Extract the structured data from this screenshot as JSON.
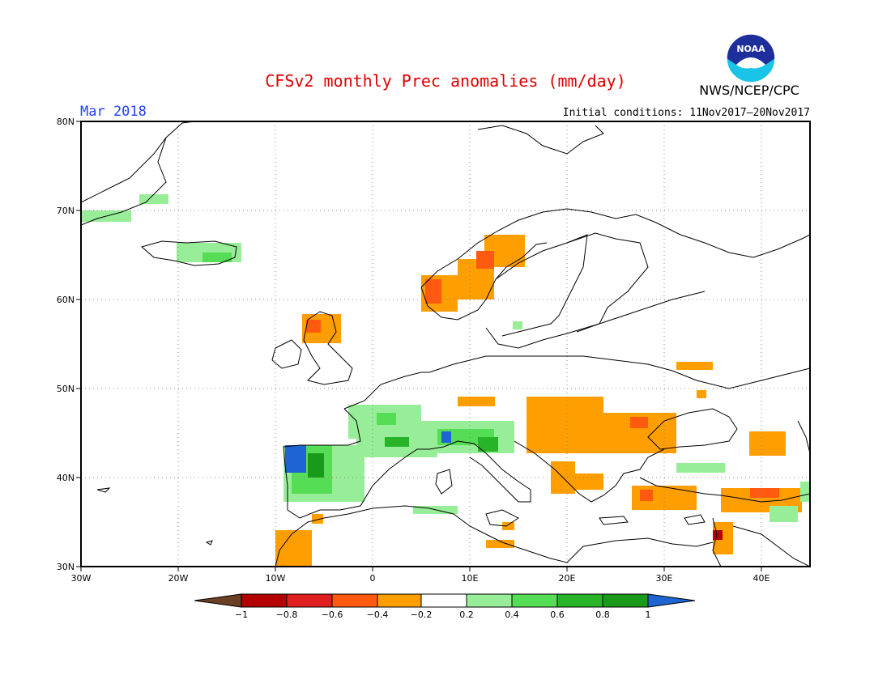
{
  "header": {
    "title": "CFSv2 monthly Prec anomalies (mm/day)",
    "period": "Mar 2018",
    "initial_conditions": "Initial conditions: 11Nov2017–20Nov2017",
    "agency": "NWS/NCEP/CPC",
    "logo_text": "NOAA"
  },
  "map": {
    "region": "Europe",
    "lon_range": [
      -30,
      45
    ],
    "lat_range": [
      30,
      80
    ],
    "lon_ticks": [
      "30W",
      "20W",
      "10W",
      "0",
      "10E",
      "20E",
      "30E",
      "40E"
    ],
    "lat_ticks": [
      "80N",
      "70N",
      "60N",
      "50N",
      "40N",
      "30N"
    ],
    "grid": "dotted",
    "anomaly_regions": [
      {
        "area": "Greenland east coast",
        "category": "0.2 to 0.4"
      },
      {
        "area": "Iceland",
        "category": "0.2 to 0.6"
      },
      {
        "area": "Norway west coast",
        "category": "-0.2 to -0.6"
      },
      {
        "area": "Scotland",
        "category": "-0.2 to -0.6"
      },
      {
        "area": "France / Iberia north",
        "category": "0.2 to 0.8"
      },
      {
        "area": "Portugal / NW Spain",
        "category": "0.6 to 1"
      },
      {
        "area": "Alps / N Italy",
        "category": "0.2 to 1"
      },
      {
        "area": "Balkans / Romania",
        "category": "-0.2 to -0.6"
      },
      {
        "area": "Turkey / E Mediterranean",
        "category": "-0.2 to -0.6"
      },
      {
        "area": "Morocco",
        "category": "-0.2 to -0.4"
      }
    ]
  },
  "legend": {
    "labels": [
      "−1",
      "−0.8",
      "−0.6",
      "−0.4",
      "−0.2",
      "0.2",
      "0.4",
      "0.6",
      "0.8",
      "1"
    ],
    "colors": [
      "#6b3f24",
      "#b40000",
      "#e02020",
      "#ff5a10",
      "#ff9e00",
      "#ffffff",
      "#98ee98",
      "#56dd56",
      "#28b428",
      "#1a9a1a",
      "#1e64d2"
    ]
  }
}
